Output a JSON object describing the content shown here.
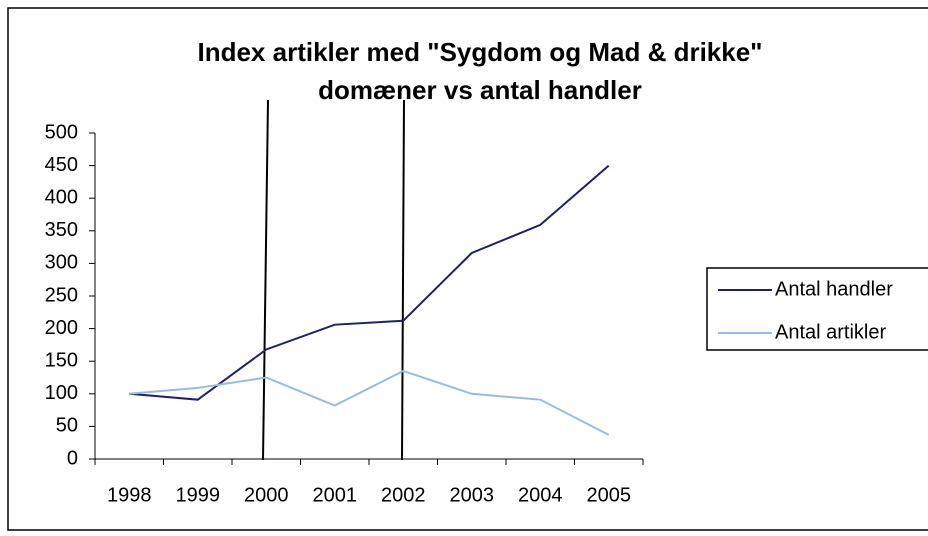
{
  "chart_data": {
    "type": "line",
    "title": [
      "Index artikler med \"Sygdom og Mad & drikke\"",
      "domæner vs antal handler"
    ],
    "categories": [
      "1998",
      "1999",
      "2000",
      "2001",
      "2002",
      "2003",
      "2004",
      "2005"
    ],
    "series": [
      {
        "name": "Antal handler",
        "color": "#1f1f6b",
        "values": [
          100,
          91,
          168,
          206,
          212,
          316,
          359,
          450
        ]
      },
      {
        "name": "Antal artikler",
        "color": "#99bbdd",
        "values": [
          100,
          109,
          125,
          82,
          135,
          100,
          91,
          37
        ]
      }
    ],
    "ylim": [
      0,
      500
    ],
    "yticks": [
      0,
      50,
      100,
      150,
      200,
      250,
      300,
      350,
      400,
      450,
      500
    ],
    "grid": false,
    "legend": "right"
  }
}
